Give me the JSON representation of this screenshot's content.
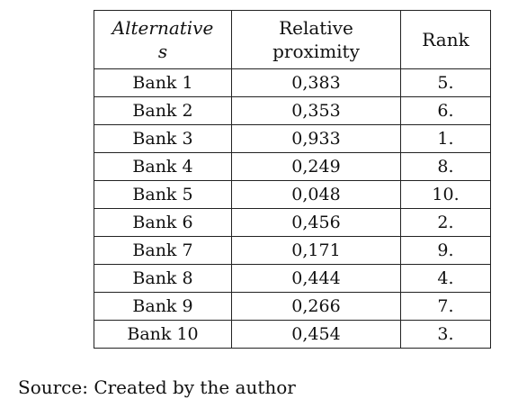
{
  "table": {
    "headers": {
      "alternatives_line1": "Alternative",
      "alternatives_line2": "s",
      "proximity_line1": "Relative",
      "proximity_line2": "proximity",
      "rank": "Rank"
    },
    "rows": [
      {
        "alternative": "Bank 1",
        "proximity": "0,383",
        "rank": "5."
      },
      {
        "alternative": "Bank 2",
        "proximity": "0,353",
        "rank": "6."
      },
      {
        "alternative": "Bank 3",
        "proximity": "0,933",
        "rank": "1."
      },
      {
        "alternative": "Bank 4",
        "proximity": "0,249",
        "rank": "8."
      },
      {
        "alternative": "Bank 5",
        "proximity": "0,048",
        "rank": "10."
      },
      {
        "alternative": "Bank 6",
        "proximity": "0,456",
        "rank": "2."
      },
      {
        "alternative": "Bank 7",
        "proximity": "0,171",
        "rank": "9."
      },
      {
        "alternative": "Bank 8",
        "proximity": "0,444",
        "rank": "4."
      },
      {
        "alternative": "Bank 9",
        "proximity": "0,266",
        "rank": "7."
      },
      {
        "alternative": "Bank 10",
        "proximity": "0,454",
        "rank": "3."
      }
    ]
  },
  "source": "Source: Created by the author"
}
